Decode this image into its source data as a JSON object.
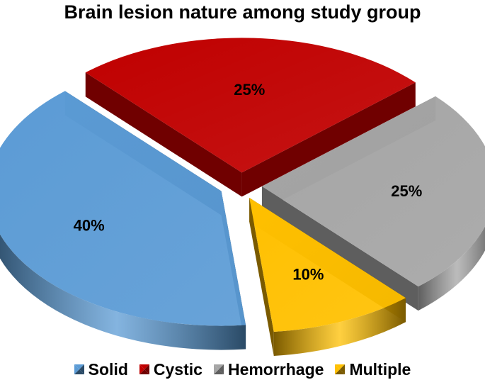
{
  "chart_data": {
    "type": "pie",
    "title": "Brain lesion nature among study group",
    "categories": [
      "Solid",
      "Cystic",
      "Hemorrhage",
      "Multiple"
    ],
    "values": [
      40,
      25,
      25,
      10
    ],
    "data_labels": [
      "40%",
      "25%",
      "25%",
      "10%"
    ],
    "colors": [
      "#5B9BD5",
      "#C00000",
      "#A5A5A5",
      "#FFC000"
    ],
    "side_colors": [
      "#2A4A66",
      "#700000",
      "#5E5E5E",
      "#7A5A00"
    ],
    "style": "3d-exploded",
    "legend_position": "bottom"
  }
}
